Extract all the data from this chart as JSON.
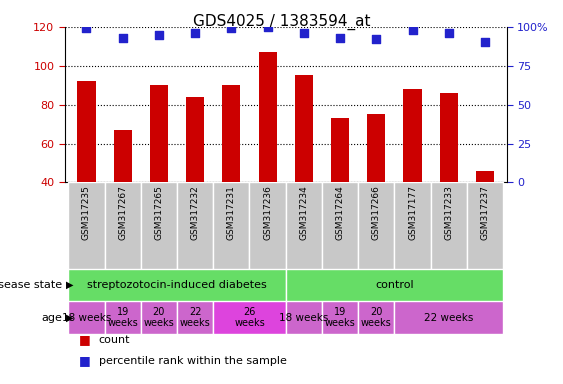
{
  "title": "GDS4025 / 1383594_at",
  "samples": [
    "GSM317235",
    "GSM317267",
    "GSM317265",
    "GSM317232",
    "GSM317231",
    "GSM317236",
    "GSM317234",
    "GSM317264",
    "GSM317266",
    "GSM317177",
    "GSM317233",
    "GSM317237"
  ],
  "counts": [
    92,
    67,
    90,
    84,
    90,
    107,
    95,
    73,
    75,
    88,
    86,
    46
  ],
  "percentiles": [
    99,
    93,
    95,
    96,
    99,
    100,
    96,
    93,
    92,
    98,
    96,
    90
  ],
  "ylim_left": [
    40,
    120
  ],
  "ylim_right": [
    0,
    100
  ],
  "yticks_left": [
    40,
    60,
    80,
    100,
    120
  ],
  "yticks_right": [
    0,
    25,
    50,
    75,
    100
  ],
  "bar_color": "#cc0000",
  "dot_color": "#2222cc",
  "grid_color": "#000000",
  "label_bg_color": "#c8c8c8",
  "label_bg_edge": "#ffffff",
  "ds_color_diabetes": "#66dd66",
  "ds_color_control": "#66dd66",
  "age_color_normal": "#cc66cc",
  "age_color_26": "#dd44dd",
  "background_color": "#ffffff",
  "tick_color_left": "#cc0000",
  "tick_color_right": "#2222cc",
  "ds_groups": [
    {
      "start": 0,
      "end": 5,
      "label": "streptozotocin-induced diabetes"
    },
    {
      "start": 6,
      "end": 11,
      "label": "control"
    }
  ],
  "age_groups": [
    {
      "start": 0,
      "end": 0,
      "label": "18 weeks",
      "two_line": false
    },
    {
      "start": 1,
      "end": 1,
      "label": "19\nweeks",
      "two_line": true
    },
    {
      "start": 2,
      "end": 2,
      "label": "20\nweeks",
      "two_line": true
    },
    {
      "start": 3,
      "end": 3,
      "label": "22\nweeks",
      "two_line": true
    },
    {
      "start": 4,
      "end": 5,
      "label": "26\nweeks",
      "two_line": true
    },
    {
      "start": 6,
      "end": 6,
      "label": "18 weeks",
      "two_line": false
    },
    {
      "start": 7,
      "end": 7,
      "label": "19\nweeks",
      "two_line": true
    },
    {
      "start": 8,
      "end": 8,
      "label": "20\nweeks",
      "two_line": true
    },
    {
      "start": 9,
      "end": 11,
      "label": "22 weeks",
      "two_line": false
    }
  ]
}
